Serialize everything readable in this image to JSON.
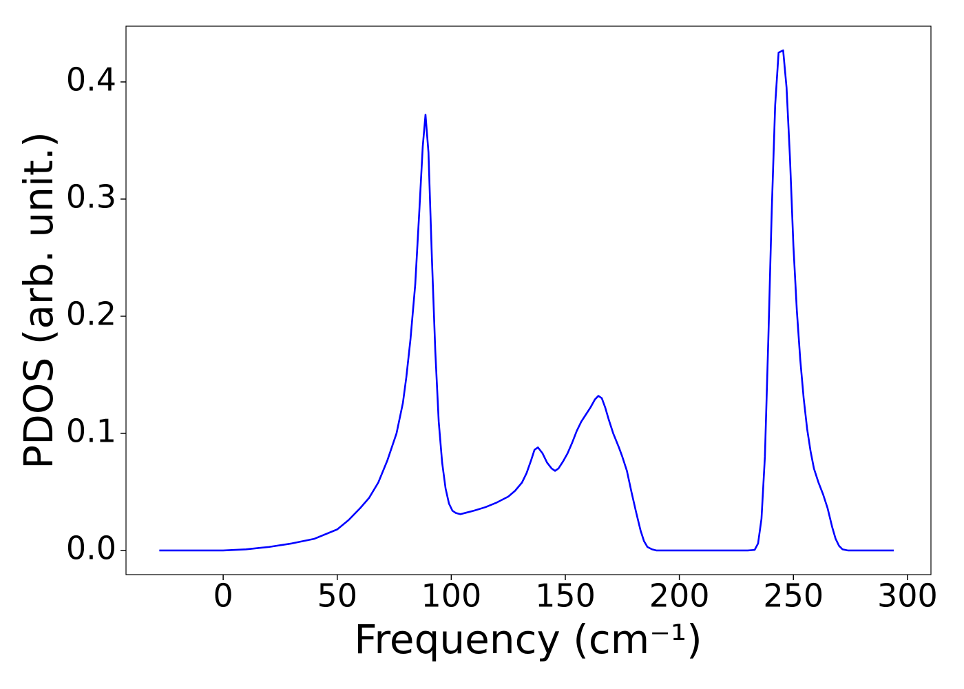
{
  "chart_data": {
    "type": "line",
    "xlabel": "Frequency (cm⁻¹)",
    "ylabel": "PDOS (arb. unit.)",
    "xlim": [
      -42.6,
      310.3
    ],
    "ylim": [
      -0.0206,
      0.4476
    ],
    "xticks": [
      0,
      50,
      100,
      150,
      200,
      250,
      300
    ],
    "yticks": [
      {
        "value": 0,
        "label": "0.0"
      },
      0.1,
      0.2,
      0.3,
      0.4
    ],
    "x": [
      -28,
      0,
      10,
      20,
      30,
      40,
      50,
      55,
      60,
      64,
      68,
      72,
      76,
      78.8,
      80.3,
      82.1,
      84.2,
      86,
      87.5,
      88.7,
      90,
      91.5,
      93,
      94.5,
      96,
      97.5,
      99,
      100.5,
      102,
      104,
      106,
      110,
      115,
      120,
      125,
      128,
      131,
      133,
      135,
      136.5,
      138,
      140,
      142,
      144,
      145.5,
      147,
      149,
      151,
      153,
      155,
      157,
      159,
      161,
      163,
      164.5,
      166,
      167.5,
      169,
      171,
      173.5,
      175,
      177,
      179,
      181,
      183,
      184.5,
      186,
      188,
      190,
      200,
      230,
      233,
      234.5,
      236,
      237.5,
      239,
      240.5,
      242,
      243.5,
      245.5,
      247,
      248.5,
      250,
      251.5,
      253,
      254.5,
      256,
      257.5,
      259,
      261,
      263,
      265,
      267,
      268.5,
      270,
      271.5,
      274,
      294
    ],
    "series": [
      {
        "color": "#0000ff",
        "values": [
          0,
          0,
          0.001,
          0.003,
          0.006,
          0.01,
          0.018,
          0.026,
          0.036,
          0.045,
          0.058,
          0.077,
          0.1,
          0.126,
          0.148,
          0.18,
          0.227,
          0.29,
          0.345,
          0.372,
          0.34,
          0.25,
          0.17,
          0.11,
          0.075,
          0.053,
          0.04,
          0.034,
          0.032,
          0.031,
          0.032,
          0.034,
          0.037,
          0.041,
          0.046,
          0.051,
          0.058,
          0.066,
          0.077,
          0.086,
          0.088,
          0.083,
          0.075,
          0.07,
          0.068,
          0.07,
          0.076,
          0.083,
          0.092,
          0.102,
          0.11,
          0.116,
          0.122,
          0.129,
          0.132,
          0.13,
          0.122,
          0.112,
          0.1,
          0.088,
          0.08,
          0.068,
          0.05,
          0.033,
          0.017,
          0.008,
          0.003,
          0.001,
          0,
          0,
          0,
          0.0005,
          0.006,
          0.027,
          0.08,
          0.18,
          0.29,
          0.38,
          0.425,
          0.427,
          0.395,
          0.335,
          0.26,
          0.205,
          0.163,
          0.13,
          0.104,
          0.085,
          0.07,
          0.058,
          0.048,
          0.036,
          0.02,
          0.01,
          0.004,
          0.001,
          0,
          0
        ]
      }
    ]
  }
}
